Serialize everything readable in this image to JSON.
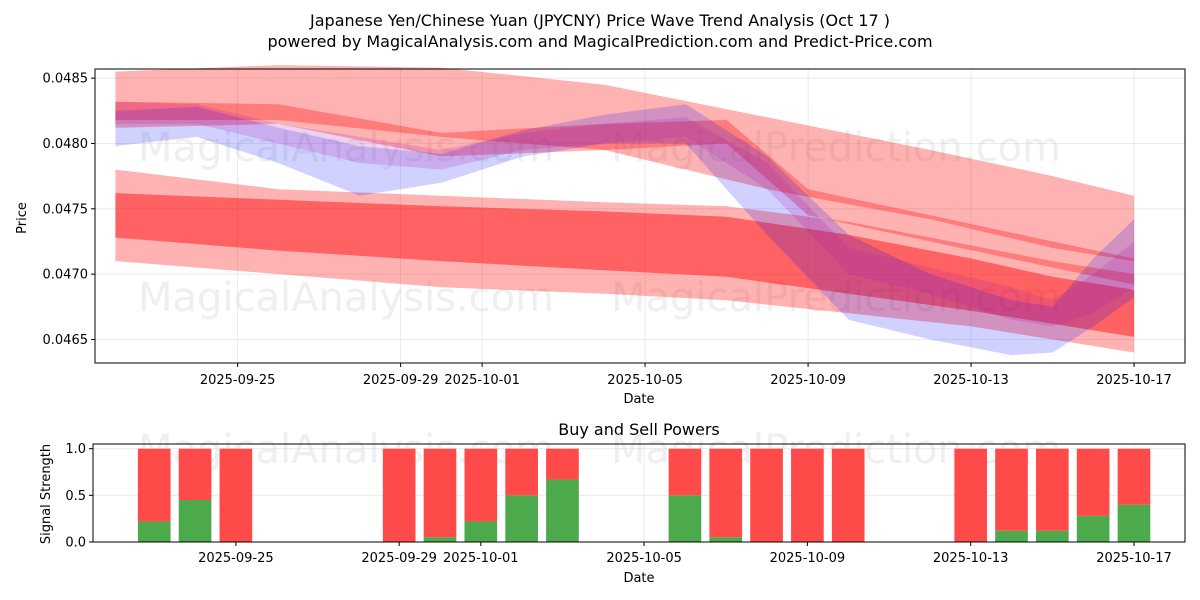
{
  "chart_data": [
    {
      "type": "area",
      "title": "Japanese Yen/Chinese Yuan (JPYCNY) Price Wave Trend Analysis (Oct 17 )",
      "subtitle": "powered by MagicalAnalysis.com and MagicalPrediction.com and Predict-Price.com",
      "xlabel": "Date",
      "ylabel": "Price",
      "xlim": [
        "2025-09-21 12:00",
        "2025-10-18 06:00"
      ],
      "ylim": [
        0.04632,
        0.04857
      ],
      "x_ticks": [
        "2025-09-25",
        "2025-09-29",
        "2025-10-01",
        "2025-10-05",
        "2025-10-09",
        "2025-10-13",
        "2025-10-17"
      ],
      "y_ticks": [
        0.0465,
        0.047,
        0.0475,
        0.048,
        0.0485
      ],
      "y_tick_labels": [
        "0.0465",
        "0.0470",
        "0.0475",
        "0.0480",
        "0.0485"
      ],
      "grid": true,
      "watermarks": [
        "MagicalAnalysis.com",
        "MagicalPrediction.com",
        "MagicalAnalysis.com",
        "MagicalPrediction.com"
      ],
      "bands": [
        {
          "name": "red-wide-top",
          "color": "#ff0000",
          "opacity": 0.3,
          "x": [
            "2025-09-22",
            "2025-09-26",
            "2025-09-30",
            "2025-10-04",
            "2025-10-08",
            "2025-10-12",
            "2025-10-15",
            "2025-10-17"
          ],
          "upper": [
            0.04855,
            0.0486,
            0.04858,
            0.04845,
            0.0482,
            0.04795,
            0.04775,
            0.0476
          ],
          "lower": [
            0.04818,
            0.04818,
            0.04805,
            0.04795,
            0.04765,
            0.04742,
            0.0472,
            0.0471
          ]
        },
        {
          "name": "red-upper-mid",
          "color": "#ff0000",
          "opacity": 0.3,
          "x": [
            "2025-09-22",
            "2025-09-26",
            "2025-09-30",
            "2025-10-04",
            "2025-10-07",
            "2025-10-09",
            "2025-10-12",
            "2025-10-15",
            "2025-10-17"
          ],
          "upper": [
            0.04832,
            0.0483,
            0.04808,
            0.04815,
            0.04818,
            0.04765,
            0.04745,
            0.04725,
            0.04712
          ],
          "lower": [
            0.04812,
            0.04815,
            0.0479,
            0.04795,
            0.048,
            0.04745,
            0.04725,
            0.04705,
            0.04692
          ]
        },
        {
          "name": "red-lower-wide",
          "color": "#ff0000",
          "opacity": 0.3,
          "x": [
            "2025-09-22",
            "2025-09-26",
            "2025-09-30",
            "2025-10-04",
            "2025-10-07",
            "2025-10-10",
            "2025-10-13",
            "2025-10-15",
            "2025-10-17"
          ],
          "upper": [
            0.0478,
            0.04765,
            0.0476,
            0.04755,
            0.04752,
            0.0474,
            0.04722,
            0.0471,
            0.047
          ],
          "lower": [
            0.0471,
            0.047,
            0.0469,
            0.04685,
            0.0468,
            0.0467,
            0.0466,
            0.0465,
            0.0464
          ]
        },
        {
          "name": "red-lower-dense",
          "color": "#ff0000",
          "opacity": 0.45,
          "x": [
            "2025-09-22",
            "2025-09-26",
            "2025-09-30",
            "2025-10-04",
            "2025-10-07",
            "2025-10-10",
            "2025-10-13",
            "2025-10-15",
            "2025-10-17"
          ],
          "upper": [
            0.04762,
            0.04757,
            0.04752,
            0.04748,
            0.04744,
            0.0473,
            0.04712,
            0.04698,
            0.04688
          ],
          "lower": [
            0.04728,
            0.04718,
            0.0471,
            0.04703,
            0.04698,
            0.04685,
            0.04672,
            0.04662,
            0.04652
          ]
        },
        {
          "name": "blue-wave",
          "color": "#0000ff",
          "opacity": 0.18,
          "x": [
            "2025-09-22",
            "2025-09-24",
            "2025-09-26",
            "2025-09-28",
            "2025-09-30",
            "2025-10-02",
            "2025-10-04",
            "2025-10-06",
            "2025-10-08",
            "2025-10-10",
            "2025-10-12",
            "2025-10-14",
            "2025-10-15",
            "2025-10-16",
            "2025-10-17"
          ],
          "upper": [
            0.04825,
            0.04828,
            0.04812,
            0.04798,
            0.04792,
            0.0481,
            0.04822,
            0.0483,
            0.0479,
            0.0473,
            0.047,
            0.0468,
            0.04675,
            0.04712,
            0.04742
          ],
          "lower": [
            0.04798,
            0.04805,
            0.04785,
            0.0476,
            0.0477,
            0.0479,
            0.048,
            0.048,
            0.0473,
            0.04665,
            0.0465,
            0.04638,
            0.0464,
            0.0466,
            0.04682
          ]
        },
        {
          "name": "purple-wave",
          "color": "#b020b0",
          "opacity": 0.2,
          "x": [
            "2025-09-22",
            "2025-09-24",
            "2025-09-26",
            "2025-09-28",
            "2025-09-30",
            "2025-10-02",
            "2025-10-04",
            "2025-10-06",
            "2025-10-08",
            "2025-10-10",
            "2025-10-12",
            "2025-10-14",
            "2025-10-15",
            "2025-10-16",
            "2025-10-17"
          ],
          "upper": [
            0.04832,
            0.0483,
            0.04815,
            0.04805,
            0.04795,
            0.04808,
            0.04815,
            0.0482,
            0.04785,
            0.0472,
            0.04705,
            0.0469,
            0.0468,
            0.047,
            0.04725
          ],
          "lower": [
            0.04815,
            0.04815,
            0.048,
            0.04785,
            0.0478,
            0.04795,
            0.048,
            0.04805,
            0.04765,
            0.047,
            0.04685,
            0.04665,
            0.0466,
            0.0467,
            0.0469
          ]
        }
      ]
    },
    {
      "type": "bar",
      "title": "Buy and Sell Powers",
      "xlabel": "Date",
      "ylabel": "Signal Strength",
      "xlim": [
        "2025-09-21 12:00",
        "2025-10-18 06:00"
      ],
      "ylim": [
        0,
        1.05
      ],
      "x_ticks": [
        "2025-09-25",
        "2025-09-29",
        "2025-10-01",
        "2025-10-05",
        "2025-10-09",
        "2025-10-13",
        "2025-10-17"
      ],
      "y_ticks": [
        0.0,
        0.5,
        1.0
      ],
      "y_tick_labels": [
        "0.0",
        "0.5",
        "1.0"
      ],
      "grid": true,
      "watermarks": [
        "MagicalAnalysis.com",
        "MagicalPrediction.com"
      ],
      "series": [
        {
          "name": "Buy",
          "color": "#4caa4c"
        },
        {
          "name": "Sell",
          "color": "#ff4a4a"
        }
      ],
      "dates": [
        "2025-09-23",
        "2025-09-24",
        "2025-09-25",
        "2025-09-29",
        "2025-09-30",
        "2025-10-01",
        "2025-10-02",
        "2025-10-03",
        "2025-10-06",
        "2025-10-07",
        "2025-10-08",
        "2025-10-09",
        "2025-10-10",
        "2025-10-13",
        "2025-10-14",
        "2025-10-15",
        "2025-10-16",
        "2025-10-17"
      ],
      "buy": [
        0.22,
        0.45,
        0.0,
        0.0,
        0.05,
        0.22,
        0.5,
        0.67,
        0.5,
        0.05,
        0.0,
        0.0,
        0.0,
        0.0,
        0.12,
        0.12,
        0.28,
        0.4
      ],
      "sell": [
        0.78,
        0.55,
        1.0,
        1.0,
        0.95,
        0.78,
        0.5,
        0.33,
        0.5,
        0.95,
        1.0,
        1.0,
        1.0,
        1.0,
        0.88,
        0.88,
        0.72,
        0.6
      ]
    }
  ]
}
